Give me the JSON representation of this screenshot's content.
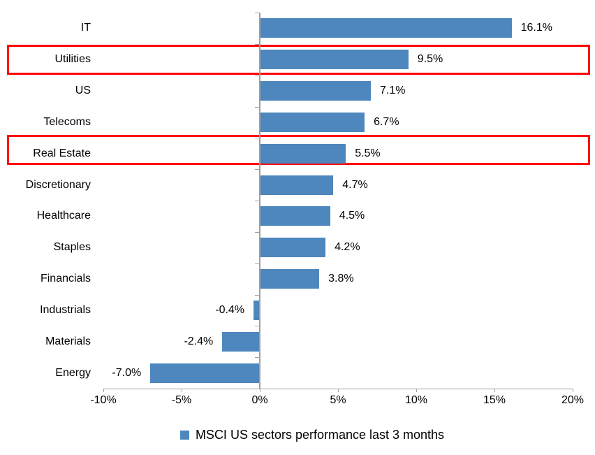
{
  "chart_data": {
    "type": "bar",
    "orientation": "horizontal",
    "title": "",
    "categories": [
      "IT",
      "Utilities",
      "US",
      "Telecoms",
      "Real Estate",
      "Discretionary",
      "Healthcare",
      "Staples",
      "Financials",
      "Industrials",
      "Materials",
      "Energy"
    ],
    "values": [
      16.1,
      9.5,
      7.1,
      6.7,
      5.5,
      4.7,
      4.5,
      4.2,
      3.8,
      -0.4,
      -2.4,
      -7.0
    ],
    "value_labels": [
      "16.1%",
      "9.5%",
      "7.1%",
      "6.7%",
      "5.5%",
      "4.7%",
      "4.5%",
      "4.2%",
      "3.8%",
      "-0.4%",
      "-2.4%",
      "-7.0%"
    ],
    "highlighted_categories": [
      "Utilities",
      "Real Estate"
    ],
    "x_axis": {
      "tick_labels": [
        "-10%",
        "-5%",
        "0%",
        "5%",
        "10%",
        "15%",
        "20%"
      ],
      "min": -10,
      "max": 20,
      "step": 5
    },
    "legend": {
      "label": "MSCI US sectors performance last 3 months",
      "position": "bottom"
    },
    "colors": {
      "bar": "#4E87BD",
      "highlight_border": "#FF0000",
      "axis_line": "#A0A0A0",
      "text": "#000000"
    },
    "grid": false
  }
}
